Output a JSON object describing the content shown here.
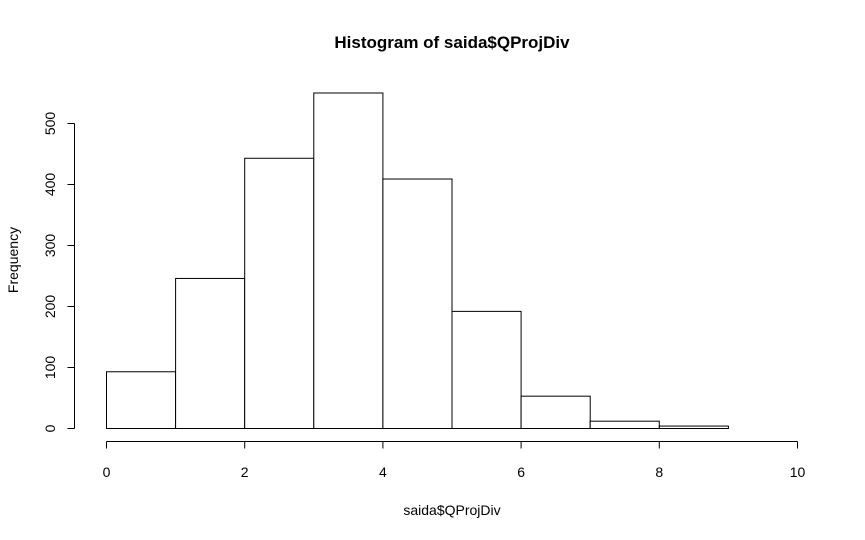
{
  "chart_data": {
    "type": "bar",
    "title": "Histogram of saida$QProjDiv",
    "xlabel": "saida$QProjDiv",
    "ylabel": "Frequency",
    "bins": [
      {
        "from": 0,
        "to": 1,
        "count": 93
      },
      {
        "from": 1,
        "to": 2,
        "count": 246
      },
      {
        "from": 2,
        "to": 3,
        "count": 443
      },
      {
        "from": 3,
        "to": 4,
        "count": 550
      },
      {
        "from": 4,
        "to": 5,
        "count": 409
      },
      {
        "from": 5,
        "to": 6,
        "count": 192
      },
      {
        "from": 6,
        "to": 7,
        "count": 53
      },
      {
        "from": 7,
        "to": 8,
        "count": 12
      },
      {
        "from": 8,
        "to": 9,
        "count": 4
      },
      {
        "from": 9,
        "to": 10,
        "count": 0
      }
    ],
    "xlim": [
      0,
      10
    ],
    "ylim": [
      0,
      500
    ],
    "xticks": [
      0,
      2,
      4,
      6,
      8,
      10
    ],
    "yticks": [
      0,
      100,
      200,
      300,
      400,
      500
    ],
    "grid": false,
    "legend": "none"
  }
}
